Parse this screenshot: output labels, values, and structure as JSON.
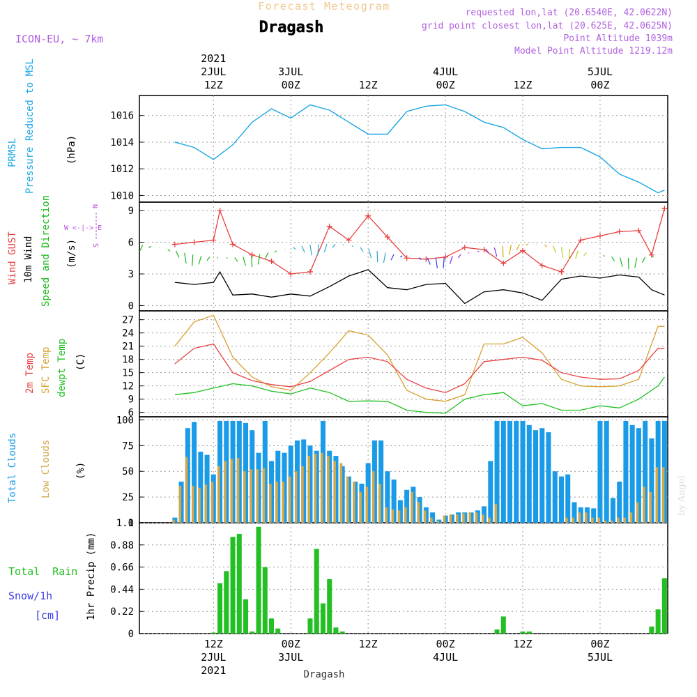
{
  "header": {
    "top_title": "Forecast Meteogram",
    "location": "Dragash",
    "model": "ICON-EU, ~ 7km",
    "requested": "requested lon,lat (20.6540E, 42.0622N)",
    "grid_point": "grid point closest lon,lat (20.625E, 42.0625N)",
    "point_altitude": "Point Altitude 1039m",
    "model_altitude": "Model Point Altitude 1219.12m",
    "footer_location": "Dragash",
    "watermark": "by Angel"
  },
  "colors": {
    "pressure": "#1aa6e6",
    "gust": "#e84040",
    "wind": "#000000",
    "wind_dir": "#16b816",
    "temp2m": "#e84040",
    "sfc_temp": "#d9a030",
    "dewpt": "#20c020",
    "total_cloud": "#1a9be8",
    "low_cloud": "#d4a84a",
    "rain": "#22c022",
    "snow": "#3a3ae8",
    "compass": "#b84ee0",
    "title_orange": "#f0c890",
    "header_purple": "#b060e0"
  },
  "time_axis": {
    "top_labels": [
      {
        "t": 6,
        "lines": [
          "2021",
          "2JUL",
          "12Z"
        ]
      },
      {
        "t": 18,
        "lines": [
          "3JUL",
          "00Z"
        ]
      },
      {
        "t": 30,
        "lines": [
          "12Z"
        ]
      },
      {
        "t": 42,
        "lines": [
          "4JUL",
          "00Z"
        ]
      },
      {
        "t": 54,
        "lines": [
          "12Z"
        ]
      },
      {
        "t": 66,
        "lines": [
          "5JUL",
          "00Z"
        ]
      }
    ],
    "bottom_labels": [
      {
        "t": 6,
        "lines": [
          "12Z",
          "2JUL",
          "2021"
        ]
      },
      {
        "t": 18,
        "lines": [
          "00Z",
          "3JUL"
        ]
      },
      {
        "t": 30,
        "lines": [
          "12Z"
        ]
      },
      {
        "t": 42,
        "lines": [
          "00Z",
          "4JUL"
        ]
      },
      {
        "t": 54,
        "lines": [
          "12Z"
        ]
      },
      {
        "t": 66,
        "lines": [
          "00Z",
          "5JUL"
        ]
      }
    ]
  },
  "panel_labels": {
    "pressure": {
      "l1": "PRMSL",
      "l2": "Pressure Reduced to MSL",
      "unit": "(hPa)"
    },
    "wind": {
      "l1": "Wind GUST",
      "l2": "10m Wind",
      "l3": "Speed and Direction",
      "unit": "(m/s)",
      "compass_n": "N",
      "compass_s": "S",
      "compass_we": "W <-|-> E"
    },
    "temp": {
      "l1": "2m Temp",
      "l2": "SFC Temp",
      "l3": "dewpt Temp",
      "unit": "(C)"
    },
    "cloud": {
      "l1": "Total Clouds",
      "l2": "Low Clouds",
      "unit": "(%)"
    },
    "precip": {
      "l1": "Total  Rain",
      "l2": "Snow/1h",
      "l3": "[cm]",
      "unit": "1hr Precip (mm)"
    }
  },
  "chart_data": [
    {
      "type": "line",
      "panel": "pressure",
      "xlabel": "",
      "ylabel": "(hPa)",
      "ylim": [
        1009.5,
        1017.5
      ],
      "yticks": [
        "1010",
        "1012",
        "1014",
        "1016"
      ],
      "x": [
        0,
        3,
        6,
        9,
        12,
        15,
        18,
        21,
        24,
        27,
        30,
        33,
        36,
        39,
        42,
        45,
        48,
        51,
        54,
        57,
        60,
        63,
        66,
        69,
        72,
        75,
        76
      ],
      "series": [
        {
          "name": "PRMSL",
          "values": [
            1014.0,
            1013.6,
            1012.7,
            1013.8,
            1015.5,
            1016.5,
            1015.8,
            1016.8,
            1016.4,
            1015.5,
            1014.6,
            1014.6,
            1016.3,
            1016.7,
            1016.8,
            1016.3,
            1015.5,
            1015.1,
            1014.2,
            1013.5,
            1013.6,
            1013.6,
            1012.9,
            1011.6,
            1011.0,
            1010.2,
            1010.4
          ]
        }
      ]
    },
    {
      "type": "line",
      "panel": "wind",
      "xlabel": "",
      "ylabel": "(m/s)",
      "ylim": [
        -0.5,
        9.8
      ],
      "yticks": [
        "0",
        "3",
        "6",
        "9"
      ],
      "x": [
        0,
        3,
        6,
        7,
        9,
        12,
        15,
        18,
        21,
        24,
        27,
        30,
        33,
        36,
        39,
        42,
        45,
        48,
        51,
        54,
        57,
        60,
        63,
        66,
        69,
        72,
        74,
        76
      ],
      "series": [
        {
          "name": "Wind GUST",
          "values": [
            5.8,
            6.0,
            6.2,
            9.0,
            5.8,
            4.8,
            4.2,
            3.0,
            3.2,
            7.5,
            6.2,
            8.5,
            6.5,
            4.5,
            4.4,
            4.6,
            5.5,
            5.3,
            4.0,
            5.2,
            3.8,
            3.2,
            6.2,
            6.6,
            7.0,
            7.1,
            4.8,
            9.2
          ]
        },
        {
          "name": "10m Wind",
          "values": [
            2.2,
            2.0,
            2.2,
            3.2,
            1.0,
            1.1,
            0.8,
            1.1,
            0.9,
            1.8,
            2.8,
            3.4,
            1.7,
            1.5,
            2.0,
            2.1,
            0.2,
            1.3,
            1.5,
            1.2,
            0.5,
            2.5,
            2.8,
            2.6,
            2.9,
            2.7,
            1.5,
            1.0
          ]
        }
      ],
      "direction_arrows": "colored arrows plotted along the 10m wind track"
    },
    {
      "type": "line",
      "panel": "temp",
      "xlabel": "",
      "ylabel": "(C)",
      "ylim": [
        5,
        29
      ],
      "yticks": [
        "6",
        "9",
        "12",
        "15",
        "18",
        "21",
        "24",
        "27"
      ],
      "x": [
        0,
        3,
        6,
        9,
        12,
        15,
        18,
        21,
        24,
        27,
        30,
        33,
        36,
        39,
        42,
        45,
        48,
        51,
        54,
        57,
        60,
        63,
        66,
        69,
        72,
        75,
        76
      ],
      "series": [
        {
          "name": "2m Temp",
          "values": [
            17.0,
            20.5,
            21.5,
            15.0,
            13.2,
            12.3,
            11.8,
            13.0,
            15.5,
            18.0,
            18.5,
            17.5,
            13.5,
            11.5,
            10.5,
            12.5,
            17.5,
            18.0,
            18.5,
            17.8,
            15.0,
            14.0,
            13.5,
            13.6,
            15.5,
            20.5,
            20.5
          ]
        },
        {
          "name": "SFC Temp",
          "values": [
            21.0,
            26.5,
            28.0,
            18.5,
            14.0,
            11.8,
            11.0,
            15.0,
            19.5,
            24.5,
            23.5,
            19.0,
            11.0,
            9.0,
            8.5,
            10.0,
            21.5,
            21.5,
            23.0,
            19.5,
            13.5,
            12.0,
            11.8,
            12.0,
            13.5,
            25.5,
            25.5
          ]
        },
        {
          "name": "dewpt Temp",
          "values": [
            10.0,
            10.5,
            11.5,
            12.5,
            12.0,
            10.8,
            10.2,
            11.5,
            10.5,
            8.5,
            8.6,
            8.5,
            6.5,
            6.0,
            5.8,
            9.0,
            10.0,
            10.5,
            7.5,
            8.0,
            6.5,
            6.5,
            7.5,
            7.0,
            9.0,
            12.0,
            14.0
          ]
        }
      ]
    },
    {
      "type": "bar",
      "panel": "cloud",
      "xlabel": "",
      "ylabel": "(%)",
      "ylim": [
        0,
        103
      ],
      "yticks": [
        "0",
        "25",
        "50",
        "75",
        "100"
      ],
      "x": [
        0,
        1,
        2,
        3,
        4,
        5,
        6,
        7,
        8,
        9,
        10,
        11,
        12,
        13,
        14,
        15,
        16,
        17,
        18,
        19,
        20,
        21,
        22,
        23,
        24,
        25,
        26,
        27,
        28,
        29,
        30,
        31,
        32,
        33,
        34,
        35,
        36,
        37,
        38,
        39,
        40,
        41,
        42,
        43,
        44,
        45,
        46,
        47,
        48,
        49,
        50,
        51,
        52,
        53,
        54,
        55,
        56,
        57,
        58,
        59,
        60,
        61,
        62,
        63,
        64,
        65,
        66,
        67,
        68,
        69,
        70,
        71,
        72,
        73,
        74,
        75,
        76
      ],
      "series": [
        {
          "name": "Total Clouds",
          "values": [
            5,
            40,
            92,
            98,
            69,
            66,
            47,
            99,
            99,
            99,
            99,
            97,
            90,
            68,
            99,
            60,
            70,
            68,
            75,
            80,
            81,
            75,
            70,
            99,
            70,
            65,
            55,
            45,
            40,
            38,
            58,
            80,
            80,
            50,
            42,
            22,
            32,
            35,
            25,
            15,
            10,
            3,
            7,
            8,
            10,
            10,
            10,
            12,
            16,
            60,
            99,
            99,
            99,
            99,
            99,
            95,
            90,
            92,
            88,
            50,
            45,
            47,
            20,
            15,
            15,
            14,
            99,
            99,
            24,
            40,
            99,
            95,
            92,
            99,
            82,
            99,
            99
          ]
        },
        {
          "name": "Low Clouds",
          "values": [
            3,
            36,
            64,
            36,
            34,
            37,
            40,
            55,
            60,
            62,
            63,
            50,
            52,
            52,
            53,
            38,
            40,
            40,
            45,
            50,
            55,
            65,
            67,
            68,
            65,
            60,
            58,
            45,
            40,
            30,
            35,
            50,
            38,
            15,
            13,
            12,
            15,
            30,
            20,
            12,
            5,
            2,
            7,
            8,
            8,
            9,
            10,
            10,
            8,
            5,
            18,
            0,
            0,
            0,
            0,
            0,
            0,
            0,
            0,
            0,
            0,
            5,
            5,
            10,
            10,
            5,
            5,
            2,
            2,
            5,
            5,
            10,
            20,
            35,
            30,
            54,
            54
          ]
        }
      ]
    },
    {
      "type": "bar",
      "panel": "precip",
      "xlabel": "",
      "ylabel": "1hr Precip (mm)",
      "ylim": [
        0,
        1.1
      ],
      "yticks": [
        "0",
        "0.22",
        "0.44",
        "0.66",
        "0.88",
        "1.1"
      ],
      "x": [
        0,
        1,
        2,
        3,
        4,
        5,
        6,
        7,
        8,
        9,
        10,
        11,
        12,
        13,
        14,
        15,
        16,
        17,
        18,
        19,
        20,
        21,
        22,
        23,
        24,
        25,
        26,
        27,
        28,
        29,
        30,
        31,
        32,
        33,
        34,
        35,
        36,
        37,
        38,
        39,
        40,
        41,
        42,
        43,
        44,
        45,
        46,
        47,
        48,
        49,
        50,
        51,
        52,
        53,
        54,
        55,
        56,
        57,
        58,
        59,
        60,
        61,
        62,
        63,
        64,
        65,
        66,
        67,
        68,
        69,
        70,
        71,
        72,
        73,
        74,
        75,
        76
      ],
      "series": [
        {
          "name": "Total Rain",
          "values": [
            0,
            0,
            0,
            0,
            0,
            0,
            0.01,
            0.5,
            0.62,
            0.96,
            0.99,
            0.34,
            0.02,
            1.06,
            0.66,
            0.15,
            0.05,
            0,
            0,
            0,
            0,
            0.15,
            0.84,
            0.3,
            0.54,
            0.06,
            0.02,
            0,
            0,
            0,
            0,
            0,
            0,
            0,
            0,
            0,
            0,
            0,
            0,
            0,
            0,
            0,
            0,
            0,
            0,
            0,
            0,
            0,
            0,
            0,
            0.04,
            0.17,
            0,
            0,
            0.02,
            0.02,
            0,
            0,
            0,
            0,
            0,
            0,
            0,
            0,
            0,
            0,
            0,
            0,
            0,
            0,
            0,
            0,
            0,
            0,
            0.07,
            0.24,
            0.55
          ]
        },
        {
          "name": "Snow/1h",
          "values": [
            0,
            0,
            0,
            0,
            0,
            0,
            0,
            0,
            0,
            0,
            0,
            0,
            0,
            0,
            0,
            0,
            0,
            0,
            0,
            0,
            0,
            0,
            0,
            0,
            0,
            0,
            0,
            0,
            0,
            0,
            0,
            0,
            0,
            0,
            0,
            0,
            0,
            0,
            0,
            0,
            0,
            0,
            0,
            0,
            0,
            0,
            0,
            0,
            0,
            0,
            0,
            0,
            0,
            0,
            0,
            0,
            0,
            0,
            0,
            0,
            0,
            0,
            0,
            0,
            0,
            0,
            0,
            0,
            0,
            0,
            0,
            0,
            0,
            0,
            0,
            0,
            0
          ]
        }
      ]
    }
  ]
}
